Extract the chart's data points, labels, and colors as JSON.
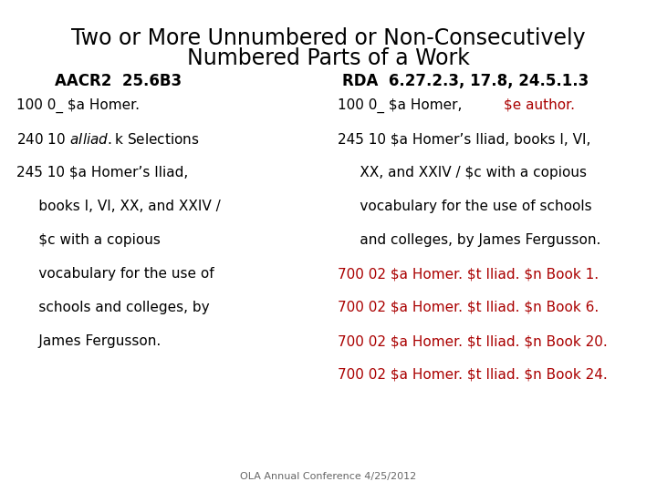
{
  "title_line1": "Two or More Unnumbered or Non-Consecutively",
  "title_line2": "Numbered Parts of a Work",
  "col1_header": "AACR2  25.6B3",
  "col2_header": "RDA  6.27.2.3, 17.8, 24.5.1.3",
  "col1_lines": [
    {
      "text": "100 0_ $a Homer.",
      "color": "#000000"
    },
    {
      "text": "240 10 $a Iliad. $k Selections",
      "color": "#000000"
    },
    {
      "text": "245 10 $a Homer’s Iliad,",
      "color": "#000000"
    },
    {
      "text": "     books I, VI, XX, and XXIV /",
      "color": "#000000"
    },
    {
      "text": "     $c with a copious",
      "color": "#000000"
    },
    {
      "text": "     vocabulary for the use of",
      "color": "#000000"
    },
    {
      "text": "     schools and colleges, by",
      "color": "#000000"
    },
    {
      "text": "     James Fergusson.",
      "color": "#000000"
    }
  ],
  "col2_line1_black": "100 0_ $a Homer, ",
  "col2_line1_red": "$e author.",
  "col2_lines": [
    {
      "text": "100 0_ $a Homer, ",
      "color": "#000000",
      "extra": "$e author.",
      "extra_color": "#aa0000"
    },
    {
      "text": "245 10 $a Homer’s Iliad, books I, VI,",
      "color": "#000000",
      "extra": null,
      "extra_color": null
    },
    {
      "text": "     XX, and XXIV / $c with a copious",
      "color": "#000000",
      "extra": null,
      "extra_color": null
    },
    {
      "text": "     vocabulary for the use of schools",
      "color": "#000000",
      "extra": null,
      "extra_color": null
    },
    {
      "text": "     and colleges, by James Fergusson.",
      "color": "#000000",
      "extra": null,
      "extra_color": null
    },
    {
      "text": "700 02 $a Homer. $t Iliad. $n Book 1.",
      "color": "#aa0000",
      "extra": null,
      "extra_color": null
    },
    {
      "text": "700 02 $a Homer. $t Iliad. $n Book 6.",
      "color": "#aa0000",
      "extra": null,
      "extra_color": null
    },
    {
      "text": "700 02 $a Homer. $t Iliad. $n Book 20.",
      "color": "#aa0000",
      "extra": null,
      "extra_color": null
    },
    {
      "text": "700 02 $a Homer. $t Iliad. $n Book 24.",
      "color": "#aa0000",
      "extra": null,
      "extra_color": null
    }
  ],
  "footer": "OLA Annual Conference 4/25/2012",
  "bg_color": "#ffffff",
  "title_color": "#000000",
  "header_color": "#000000",
  "title_fontsize": 17,
  "header_fontsize": 12,
  "body_fontsize": 11,
  "footer_fontsize": 8
}
